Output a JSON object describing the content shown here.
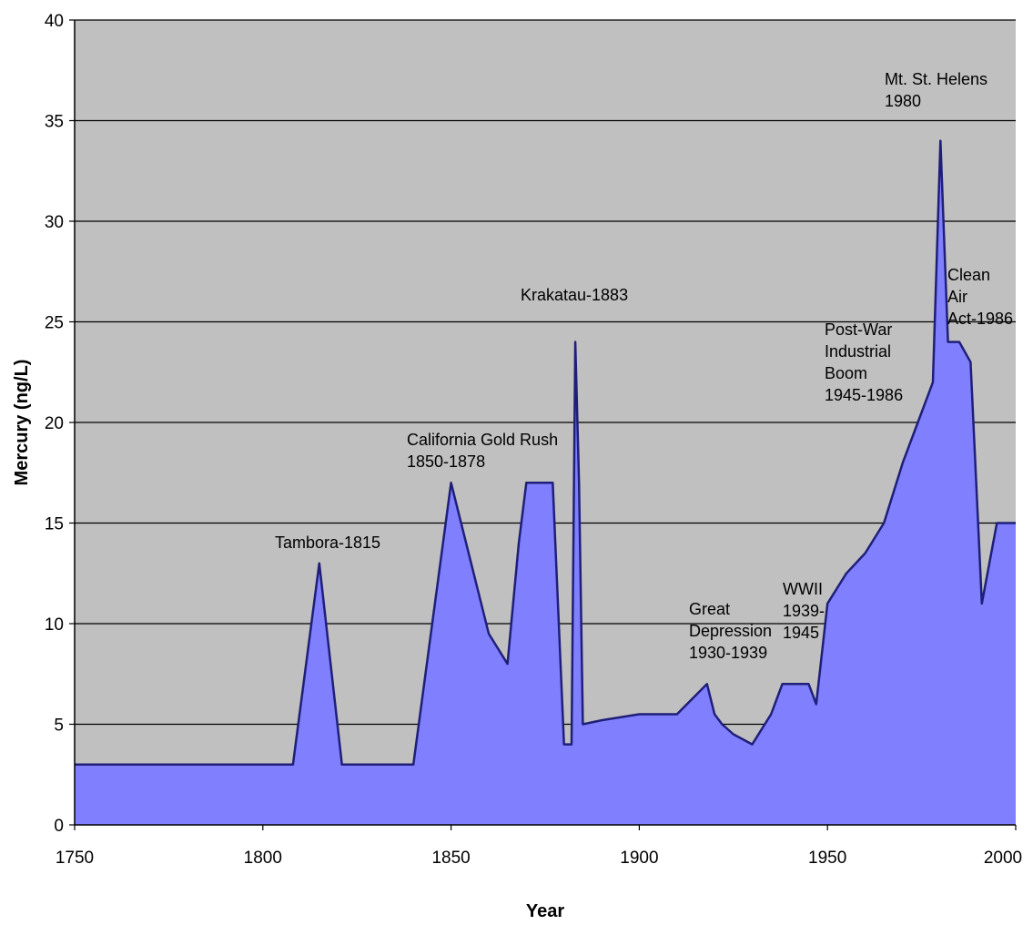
{
  "chart_data": {
    "type": "area",
    "title": "",
    "xlabel": "Year",
    "ylabel": "Mercury (ng/L)",
    "xlim": [
      1750,
      2000
    ],
    "ylim": [
      0,
      40
    ],
    "x_ticks": [
      "1750",
      "1800",
      "1850",
      "1900",
      "1950",
      "2000"
    ],
    "y_ticks": [
      "0",
      "5",
      "10",
      "15",
      "20",
      "25",
      "30",
      "35",
      "40"
    ],
    "grid": true,
    "legend": "none",
    "colors": {
      "fill": "#8080ff",
      "line": "#1f1f7a",
      "plot_bg": "#c0c0c0",
      "gridline": "#000000"
    },
    "series": [
      {
        "x": [
          1750,
          1808,
          1815,
          1821,
          1840,
          1850,
          1860,
          1865,
          1868,
          1870,
          1875,
          1877,
          1880,
          1882,
          1883,
          1884,
          1885,
          1890,
          1900,
          1910,
          1918,
          1920,
          1922,
          1925,
          1930,
          1935,
          1938,
          1945,
          1947,
          1950,
          1955,
          1960,
          1965,
          1970,
          1975,
          1978,
          1980,
          1982,
          1985,
          1988,
          1991,
          1995,
          2000
        ],
        "y": [
          3,
          3,
          13,
          3,
          3,
          17,
          9.5,
          8,
          14,
          17,
          17,
          17,
          4,
          4,
          24,
          17,
          5,
          5.2,
          5.5,
          5.5,
          7,
          5.5,
          5,
          4.5,
          4,
          5.5,
          7,
          7,
          6,
          11,
          12.5,
          13.5,
          15,
          18,
          20.5,
          22,
          34,
          24,
          24,
          23,
          11,
          15,
          15
        ]
      }
    ],
    "annotations": [
      {
        "id": "tambora",
        "lines": [
          "Tambora-1815"
        ]
      },
      {
        "id": "goldrush",
        "lines": [
          "California Gold Rush",
          "1850-1878"
        ]
      },
      {
        "id": "krakatau",
        "lines": [
          "Krakatau-1883"
        ]
      },
      {
        "id": "depression",
        "lines": [
          "Great",
          "Depression",
          "1930-1939"
        ]
      },
      {
        "id": "wwii",
        "lines": [
          "WWII",
          "1939-",
          "1945"
        ]
      },
      {
        "id": "postwar",
        "lines": [
          "Post-War",
          "Industrial",
          "Boom",
          "1945-1986"
        ]
      },
      {
        "id": "sthelens",
        "lines": [
          "Mt. St. Helens",
          "1980"
        ]
      },
      {
        "id": "cleanair",
        "lines": [
          "Clean",
          "Air",
          "Act-1986"
        ]
      }
    ]
  }
}
